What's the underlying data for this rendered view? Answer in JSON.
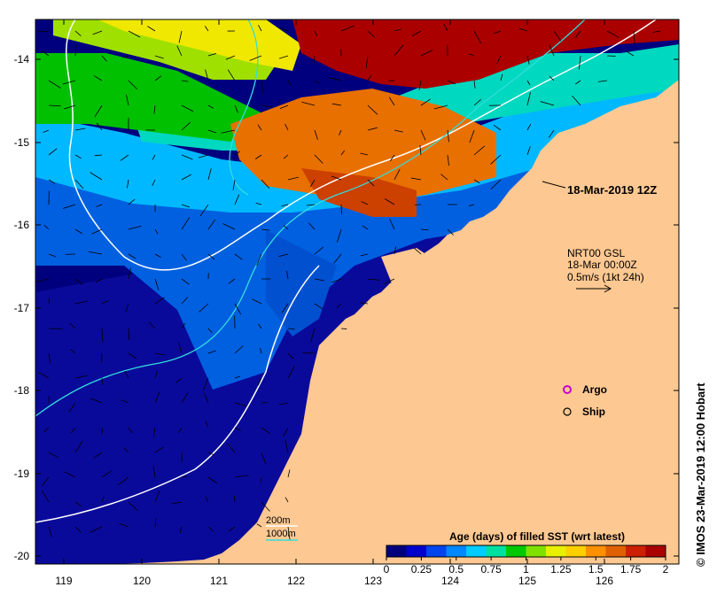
{
  "map": {
    "lon_ticks": [
      "119",
      "120",
      "121",
      "122",
      "123",
      "124",
      "125",
      "126"
    ],
    "lat_ticks": [
      "-14",
      "-15",
      "-16",
      "-17",
      "-18",
      "-19",
      "-20"
    ],
    "timestamp_label": "18-Mar-2019 12Z",
    "current_info": {
      "line1": "NRT00 GSL",
      "line2": "18-Mar 00:00Z",
      "line3": "0.5m/s (1kt 24h)"
    },
    "legend": {
      "argo": "Argo",
      "ship": "Ship",
      "argo_color": "#cc00cc",
      "ship_color": "#000000"
    },
    "depth_legend": {
      "d200": "200m",
      "d1000": "1000m",
      "d200_color": "#ffffff",
      "d1000_color": "#33dddd"
    },
    "colorbar": {
      "title": "Age (days) of filled SST (wrt latest)",
      "ticks": [
        "0",
        "0.25",
        "0.5",
        "0.75",
        "1",
        "1.25",
        "1.5",
        "1.75",
        "2"
      ],
      "colors": [
        "#00007f",
        "#0000cc",
        "#0044ee",
        "#0088ff",
        "#00ccff",
        "#00e0a0",
        "#00c800",
        "#80e000",
        "#e8f000",
        "#ffd000",
        "#ff9000",
        "#e06000",
        "#cc2000",
        "#aa0000"
      ]
    },
    "credit": "© IMOS 23-Mar-2019 12:00 Hobart",
    "land_color": "#fdc891"
  }
}
